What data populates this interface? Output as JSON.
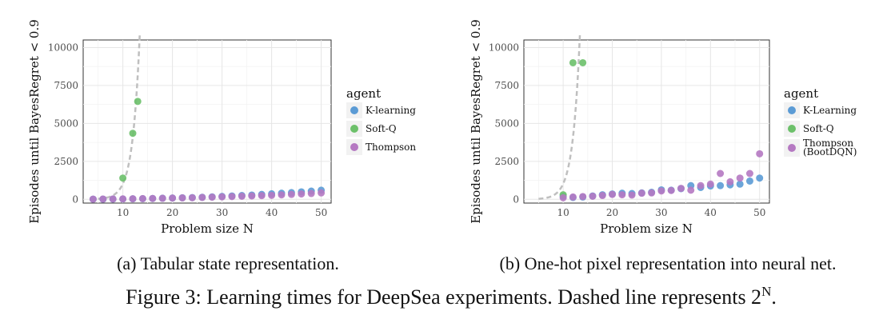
{
  "colors": {
    "K-learning": "#5b9bd5",
    "Soft-Q": "#6cc06a",
    "Thompson": "#b579c2",
    "reference": "#bfbfbf"
  },
  "chart_data": [
    {
      "type": "scatter",
      "subcaption": "(a) Tabular state representation.",
      "xlabel": "Problem size N",
      "ylabel": "Episodes until BayesRegret < 0.9",
      "xlim": [
        2,
        52
      ],
      "ylim": [
        -250,
        10500
      ],
      "xticks": [
        10,
        20,
        30,
        40,
        50
      ],
      "yticks": [
        0,
        2500,
        5000,
        7500,
        10000
      ],
      "grid": true,
      "legend_title": "agent",
      "legend_position": "right",
      "reference_curve": "2^N",
      "series": [
        {
          "name": "K-learning",
          "x": [
            4,
            6,
            8,
            10,
            12,
            14,
            16,
            18,
            20,
            22,
            24,
            26,
            28,
            30,
            32,
            34,
            36,
            38,
            40,
            42,
            44,
            46,
            48,
            50
          ],
          "y": [
            8,
            10,
            14,
            20,
            30,
            40,
            55,
            70,
            85,
            100,
            115,
            135,
            160,
            190,
            220,
            250,
            280,
            320,
            360,
            400,
            440,
            490,
            540,
            600
          ]
        },
        {
          "name": "Soft-Q",
          "x": [
            10,
            12,
            13
          ],
          "y": [
            1400,
            4350,
            6450
          ]
        },
        {
          "name": "Thompson",
          "x": [
            4,
            6,
            8,
            10,
            12,
            14,
            16,
            18,
            20,
            22,
            24,
            26,
            28,
            30,
            32,
            34,
            36,
            38,
            40,
            42,
            44,
            46,
            48,
            50
          ],
          "y": [
            10,
            15,
            20,
            25,
            35,
            45,
            55,
            65,
            80,
            90,
            100,
            120,
            140,
            160,
            180,
            200,
            220,
            240,
            260,
            290,
            320,
            350,
            380,
            420
          ]
        }
      ],
      "legend": [
        {
          "label": "K-learning"
        },
        {
          "label": "Soft-Q"
        },
        {
          "label": "Thompson"
        }
      ]
    },
    {
      "type": "scatter",
      "subcaption": "(b) One-hot pixel representation into neural net.",
      "xlabel": "Problem size N",
      "ylabel": "Episodes until BayesRegret < 0.9",
      "xlim": [
        2,
        52
      ],
      "ylim": [
        -250,
        10500
      ],
      "xticks": [
        10,
        20,
        30,
        40,
        50
      ],
      "yticks": [
        0,
        2500,
        5000,
        7500,
        10000
      ],
      "grid": true,
      "legend_title": "agent",
      "legend_position": "right",
      "reference_curve": "2^N",
      "series": [
        {
          "name": "K-learning",
          "x": [
            10,
            12,
            14,
            16,
            18,
            20,
            22,
            24,
            26,
            28,
            30,
            32,
            34,
            36,
            38,
            40,
            42,
            44,
            46,
            48,
            50
          ],
          "y": [
            200,
            120,
            150,
            220,
            300,
            350,
            400,
            380,
            420,
            460,
            620,
            600,
            700,
            900,
            780,
            880,
            900,
            950,
            1000,
            1200,
            1400
          ]
        },
        {
          "name": "Soft-Q",
          "x": [
            10,
            12,
            14
          ],
          "y": [
            300,
            9000,
            9000
          ]
        },
        {
          "name": "Thompson",
          "x": [
            10,
            12,
            14,
            16,
            18,
            20,
            22,
            24,
            26,
            28,
            30,
            32,
            34,
            36,
            38,
            40,
            42,
            44,
            46,
            48,
            50
          ],
          "y": [
            100,
            150,
            180,
            200,
            250,
            320,
            300,
            280,
            400,
            420,
            550,
            580,
            720,
            600,
            900,
            1000,
            1700,
            1150,
            1400,
            1700,
            3000
          ]
        }
      ],
      "legend": [
        {
          "label": "K-Learning"
        },
        {
          "label": "Soft-Q"
        },
        {
          "label": "Thompson",
          "label2": "(BootDQN)"
        }
      ]
    }
  ],
  "figure_caption": "Figure 3: Learning times for DeepSea experiments. Dashed line represents 2",
  "figure_caption_sup": "N",
  "figure_caption_end": "."
}
